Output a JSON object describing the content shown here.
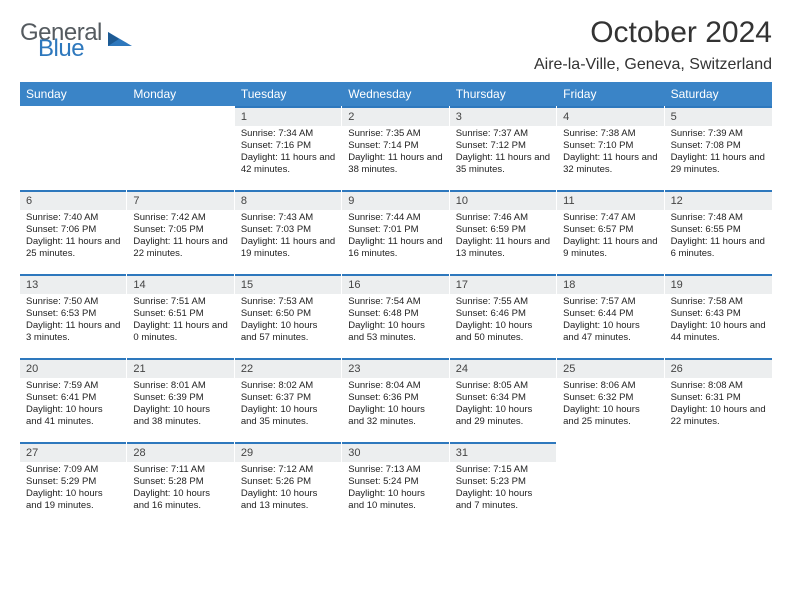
{
  "brand": {
    "part1": "General",
    "part2": "Blue",
    "color1": "#555b60",
    "color2": "#2e78bd"
  },
  "title": "October 2024",
  "location": "Aire-la-Ville, Geneva, Switzerland",
  "accent_color": "#3a84c7",
  "rule_color": "#2e78bd",
  "alt_row_bg": "#eceeef",
  "day_names": [
    "Sunday",
    "Monday",
    "Tuesday",
    "Wednesday",
    "Thursday",
    "Friday",
    "Saturday"
  ],
  "leading_blanks": 2,
  "days": [
    {
      "n": 1,
      "sunrise": "7:34 AM",
      "sunset": "7:16 PM",
      "daylight": "11 hours and 42 minutes."
    },
    {
      "n": 2,
      "sunrise": "7:35 AM",
      "sunset": "7:14 PM",
      "daylight": "11 hours and 38 minutes."
    },
    {
      "n": 3,
      "sunrise": "7:37 AM",
      "sunset": "7:12 PM",
      "daylight": "11 hours and 35 minutes."
    },
    {
      "n": 4,
      "sunrise": "7:38 AM",
      "sunset": "7:10 PM",
      "daylight": "11 hours and 32 minutes."
    },
    {
      "n": 5,
      "sunrise": "7:39 AM",
      "sunset": "7:08 PM",
      "daylight": "11 hours and 29 minutes."
    },
    {
      "n": 6,
      "sunrise": "7:40 AM",
      "sunset": "7:06 PM",
      "daylight": "11 hours and 25 minutes."
    },
    {
      "n": 7,
      "sunrise": "7:42 AM",
      "sunset": "7:05 PM",
      "daylight": "11 hours and 22 minutes."
    },
    {
      "n": 8,
      "sunrise": "7:43 AM",
      "sunset": "7:03 PM",
      "daylight": "11 hours and 19 minutes."
    },
    {
      "n": 9,
      "sunrise": "7:44 AM",
      "sunset": "7:01 PM",
      "daylight": "11 hours and 16 minutes."
    },
    {
      "n": 10,
      "sunrise": "7:46 AM",
      "sunset": "6:59 PM",
      "daylight": "11 hours and 13 minutes."
    },
    {
      "n": 11,
      "sunrise": "7:47 AM",
      "sunset": "6:57 PM",
      "daylight": "11 hours and 9 minutes."
    },
    {
      "n": 12,
      "sunrise": "7:48 AM",
      "sunset": "6:55 PM",
      "daylight": "11 hours and 6 minutes."
    },
    {
      "n": 13,
      "sunrise": "7:50 AM",
      "sunset": "6:53 PM",
      "daylight": "11 hours and 3 minutes."
    },
    {
      "n": 14,
      "sunrise": "7:51 AM",
      "sunset": "6:51 PM",
      "daylight": "11 hours and 0 minutes."
    },
    {
      "n": 15,
      "sunrise": "7:53 AM",
      "sunset": "6:50 PM",
      "daylight": "10 hours and 57 minutes."
    },
    {
      "n": 16,
      "sunrise": "7:54 AM",
      "sunset": "6:48 PM",
      "daylight": "10 hours and 53 minutes."
    },
    {
      "n": 17,
      "sunrise": "7:55 AM",
      "sunset": "6:46 PM",
      "daylight": "10 hours and 50 minutes."
    },
    {
      "n": 18,
      "sunrise": "7:57 AM",
      "sunset": "6:44 PM",
      "daylight": "10 hours and 47 minutes."
    },
    {
      "n": 19,
      "sunrise": "7:58 AM",
      "sunset": "6:43 PM",
      "daylight": "10 hours and 44 minutes."
    },
    {
      "n": 20,
      "sunrise": "7:59 AM",
      "sunset": "6:41 PM",
      "daylight": "10 hours and 41 minutes."
    },
    {
      "n": 21,
      "sunrise": "8:01 AM",
      "sunset": "6:39 PM",
      "daylight": "10 hours and 38 minutes."
    },
    {
      "n": 22,
      "sunrise": "8:02 AM",
      "sunset": "6:37 PM",
      "daylight": "10 hours and 35 minutes."
    },
    {
      "n": 23,
      "sunrise": "8:04 AM",
      "sunset": "6:36 PM",
      "daylight": "10 hours and 32 minutes."
    },
    {
      "n": 24,
      "sunrise": "8:05 AM",
      "sunset": "6:34 PM",
      "daylight": "10 hours and 29 minutes."
    },
    {
      "n": 25,
      "sunrise": "8:06 AM",
      "sunset": "6:32 PM",
      "daylight": "10 hours and 25 minutes."
    },
    {
      "n": 26,
      "sunrise": "8:08 AM",
      "sunset": "6:31 PM",
      "daylight": "10 hours and 22 minutes."
    },
    {
      "n": 27,
      "sunrise": "7:09 AM",
      "sunset": "5:29 PM",
      "daylight": "10 hours and 19 minutes."
    },
    {
      "n": 28,
      "sunrise": "7:11 AM",
      "sunset": "5:28 PM",
      "daylight": "10 hours and 16 minutes."
    },
    {
      "n": 29,
      "sunrise": "7:12 AM",
      "sunset": "5:26 PM",
      "daylight": "10 hours and 13 minutes."
    },
    {
      "n": 30,
      "sunrise": "7:13 AM",
      "sunset": "5:24 PM",
      "daylight": "10 hours and 10 minutes."
    },
    {
      "n": 31,
      "sunrise": "7:15 AM",
      "sunset": "5:23 PM",
      "daylight": "10 hours and 7 minutes."
    }
  ],
  "labels": {
    "sunrise": "Sunrise:",
    "sunset": "Sunset:",
    "daylight": "Daylight:"
  }
}
